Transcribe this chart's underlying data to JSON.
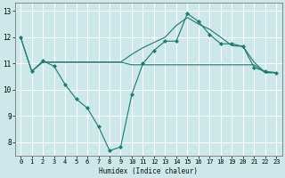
{
  "xlabel": "Humidex (Indice chaleur)",
  "bg_color": "#cce8e8",
  "grid_color": "#ffffff",
  "line_color": "#1a7a6e",
  "xlim": [
    -0.5,
    23.5
  ],
  "ylim": [
    7.5,
    13.3
  ],
  "xticks": [
    0,
    1,
    2,
    3,
    4,
    5,
    6,
    7,
    8,
    9,
    10,
    11,
    12,
    13,
    14,
    15,
    16,
    17,
    18,
    19,
    20,
    21,
    22,
    23
  ],
  "yticks": [
    8,
    9,
    10,
    11,
    12,
    13
  ],
  "line1_x": [
    0,
    1,
    2,
    3,
    4,
    5,
    6,
    7,
    8,
    9,
    10,
    11,
    12,
    13,
    14,
    15,
    16,
    17,
    18,
    19,
    20,
    21,
    22,
    23
  ],
  "line1_y": [
    12.0,
    10.7,
    11.1,
    10.9,
    10.2,
    9.65,
    9.3,
    8.6,
    7.68,
    7.82,
    9.82,
    11.0,
    11.5,
    11.85,
    11.85,
    12.9,
    12.6,
    12.1,
    11.75,
    11.75,
    11.65,
    10.85,
    10.7,
    10.65
  ],
  "line2_x": [
    0,
    1,
    2,
    3,
    4,
    5,
    6,
    7,
    8,
    9,
    10,
    11,
    12,
    13,
    14,
    15,
    16,
    17,
    18,
    19,
    20,
    21,
    22,
    23
  ],
  "line2_y": [
    12.0,
    10.7,
    11.05,
    11.05,
    11.05,
    11.05,
    11.05,
    11.05,
    11.05,
    11.05,
    10.95,
    10.95,
    10.95,
    10.95,
    10.95,
    10.95,
    10.95,
    10.95,
    10.95,
    10.95,
    10.95,
    10.95,
    10.65,
    10.65
  ],
  "line3_x": [
    2,
    3,
    4,
    5,
    6,
    7,
    8,
    9,
    10,
    11,
    12,
    13,
    14,
    15,
    16,
    17,
    18,
    19,
    20,
    21,
    22,
    23
  ],
  "line3_y": [
    11.05,
    11.05,
    11.05,
    11.05,
    11.05,
    11.05,
    11.05,
    11.05,
    11.35,
    11.6,
    11.8,
    12.0,
    12.45,
    12.75,
    12.5,
    12.3,
    12.0,
    11.68,
    11.65,
    11.05,
    10.65,
    10.65
  ]
}
